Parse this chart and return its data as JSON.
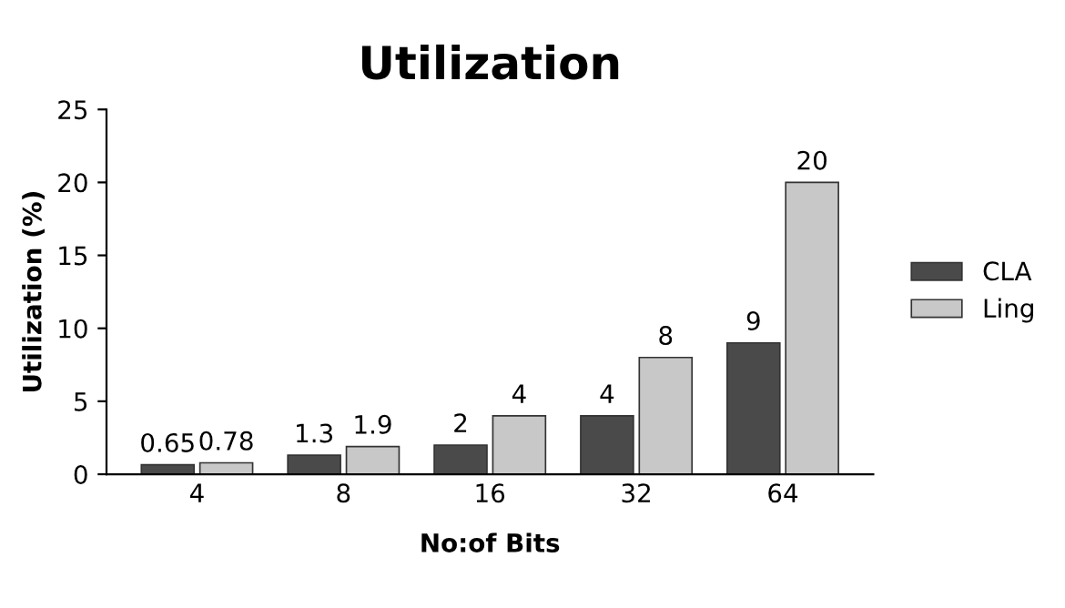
{
  "chart_data": {
    "type": "bar",
    "title": "Utilization",
    "xlabel": "No:of Bits",
    "ylabel": "Utilization (%)",
    "categories": [
      "4",
      "8",
      "16",
      "32",
      "64"
    ],
    "series": [
      {
        "name": "CLA",
        "color": "#4a4a4a",
        "values": [
          0.65,
          1.3,
          2,
          4,
          9
        ]
      },
      {
        "name": "Ling",
        "color": "#c8c8c8",
        "values": [
          0.78,
          1.9,
          4,
          8,
          20
        ]
      }
    ],
    "ylim": [
      0,
      25
    ],
    "yticks": [
      0,
      5,
      10,
      15,
      20,
      25
    ],
    "grid": false,
    "legend": "right",
    "data_labels": true
  }
}
